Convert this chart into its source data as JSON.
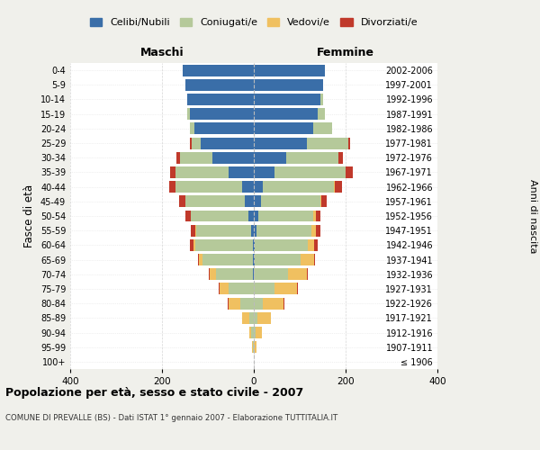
{
  "age_groups": [
    "100+",
    "95-99",
    "90-94",
    "85-89",
    "80-84",
    "75-79",
    "70-74",
    "65-69",
    "60-64",
    "55-59",
    "50-54",
    "45-49",
    "40-44",
    "35-39",
    "30-34",
    "25-29",
    "20-24",
    "15-19",
    "10-14",
    "5-9",
    "0-4"
  ],
  "birth_years": [
    "≤ 1906",
    "1907-1911",
    "1912-1916",
    "1917-1921",
    "1922-1926",
    "1927-1931",
    "1932-1936",
    "1937-1941",
    "1942-1946",
    "1947-1951",
    "1952-1956",
    "1957-1961",
    "1962-1966",
    "1967-1971",
    "1972-1976",
    "1977-1981",
    "1982-1986",
    "1987-1991",
    "1992-1996",
    "1997-2001",
    "2002-2006"
  ],
  "males": {
    "celibi": [
      0,
      0,
      0,
      0,
      0,
      0,
      2,
      2,
      2,
      5,
      12,
      20,
      25,
      55,
      90,
      115,
      130,
      140,
      145,
      150,
      155
    ],
    "coniugati": [
      0,
      2,
      5,
      10,
      30,
      55,
      80,
      110,
      125,
      120,
      125,
      130,
      145,
      115,
      70,
      20,
      10,
      5,
      0,
      0,
      0
    ],
    "vedovi": [
      0,
      2,
      5,
      15,
      25,
      20,
      15,
      8,
      5,
      2,
      0,
      0,
      0,
      0,
      0,
      0,
      0,
      0,
      0,
      0,
      0
    ],
    "divorziati": [
      0,
      0,
      0,
      0,
      2,
      2,
      2,
      2,
      8,
      10,
      12,
      12,
      15,
      12,
      8,
      5,
      0,
      0,
      0,
      0,
      0
    ]
  },
  "females": {
    "nubili": [
      0,
      0,
      0,
      0,
      0,
      0,
      0,
      2,
      2,
      5,
      10,
      15,
      20,
      45,
      70,
      115,
      130,
      140,
      145,
      150,
      155
    ],
    "coniugate": [
      0,
      0,
      3,
      8,
      20,
      45,
      75,
      100,
      115,
      120,
      120,
      130,
      155,
      155,
      115,
      90,
      40,
      15,
      5,
      0,
      0
    ],
    "vedove": [
      0,
      5,
      15,
      30,
      45,
      50,
      40,
      30,
      15,
      10,
      5,
      2,
      2,
      0,
      0,
      0,
      0,
      0,
      0,
      0,
      0
    ],
    "divorziate": [
      0,
      0,
      0,
      0,
      2,
      2,
      2,
      2,
      8,
      10,
      10,
      12,
      15,
      15,
      10,
      5,
      0,
      0,
      0,
      0,
      0
    ]
  },
  "colors": {
    "celibi": "#3a6ea8",
    "coniugati": "#b5c99a",
    "vedovi": "#f0c060",
    "divorziati": "#c0392b"
  },
  "xlim": 400,
  "title": "Popolazione per età, sesso e stato civile - 2007",
  "subtitle": "COMUNE DI PREVALLE (BS) - Dati ISTAT 1° gennaio 2007 - Elaborazione TUTTITALIA.IT",
  "ylabel_left": "Fasce di età",
  "ylabel_right": "Anni di nascita",
  "xlabel_left": "Maschi",
  "xlabel_right": "Femmine",
  "legend_labels": [
    "Celibi/Nubili",
    "Coniugati/e",
    "Vedovi/e",
    "Divorziati/e"
  ],
  "background_color": "#f0f0eb",
  "plot_bg_color": "#ffffff"
}
